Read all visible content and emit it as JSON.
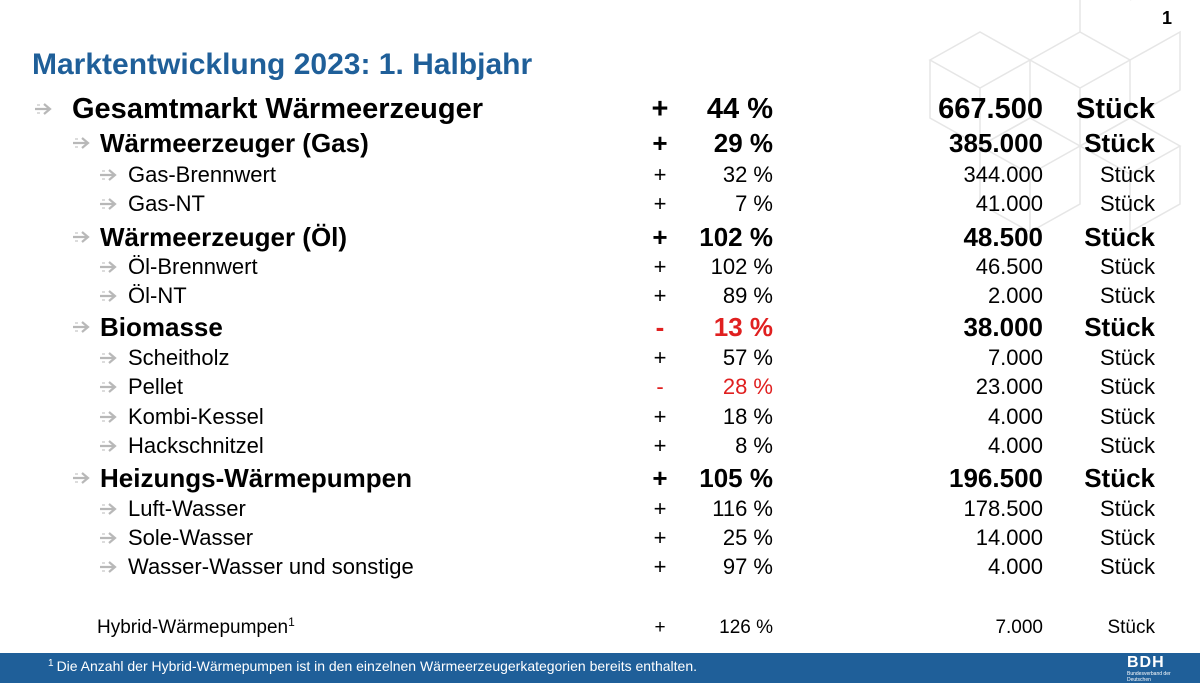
{
  "page_number": "1",
  "title": "Marktentwicklung 2023: 1. Halbjahr",
  "rows": [
    {
      "label": "Gesamtmarkt Wärmeerzeuger",
      "sign": "+",
      "pct": "44 %",
      "qty": "667.500",
      "unit": "Stück"
    },
    {
      "label": "Wärmeerzeuger (Gas)",
      "sign": "+",
      "pct": "29 %",
      "qty": "385.000",
      "unit": "Stück"
    },
    {
      "label": "Gas-Brennwert",
      "sign": "+",
      "pct": "32 %",
      "qty": "344.000",
      "unit": "Stück"
    },
    {
      "label": "Gas-NT",
      "sign": "+",
      "pct": "7 %",
      "qty": "41.000",
      "unit": "Stück"
    },
    {
      "label": "Wärmeerzeuger (Öl)",
      "sign": "+",
      "pct": "102 %",
      "qty": "48.500",
      "unit": "Stück"
    },
    {
      "label": "Öl-Brennwert",
      "sign": "+",
      "pct": "102 %",
      "qty": "46.500",
      "unit": "Stück"
    },
    {
      "label": "Öl-NT",
      "sign": "+",
      "pct": "89 %",
      "qty": "2.000",
      "unit": "Stück"
    },
    {
      "label": "Biomasse",
      "sign": "-",
      "pct": "13 %",
      "qty": "38.000",
      "unit": "Stück"
    },
    {
      "label": "Scheitholz",
      "sign": "+",
      "pct": "57 %",
      "qty": "7.000",
      "unit": "Stück"
    },
    {
      "label": "Pellet",
      "sign": "-",
      "pct": "28 %",
      "qty": "23.000",
      "unit": "Stück"
    },
    {
      "label": "Kombi-Kessel",
      "sign": "+",
      "pct": "18 %",
      "qty": "4.000",
      "unit": "Stück"
    },
    {
      "label": "Hackschnitzel",
      "sign": "+",
      "pct": "8 %",
      "qty": "4.000",
      "unit": "Stück"
    },
    {
      "label": "Heizungs-Wärmepumpen",
      "sign": "+",
      "pct": "105 %",
      "qty": "196.500",
      "unit": "Stück"
    },
    {
      "label": "Luft-Wasser",
      "sign": "+",
      "pct": "116 %",
      "qty": "178.500",
      "unit": "Stück"
    },
    {
      "label": "Sole-Wasser",
      "sign": "+",
      "pct": "25 %",
      "qty": "14.000",
      "unit": "Stück"
    },
    {
      "label": "Wasser-Wasser und sonstige",
      "sign": "+",
      "pct": "97 %",
      "qty": "4.000",
      "unit": "Stück"
    }
  ],
  "hybrid": {
    "label": "Hybrid-Wärmepumpen",
    "sup": "1",
    "sign": "+",
    "pct": "126 %",
    "qty": "7.000",
    "unit": "Stück"
  },
  "footnote": {
    "sup": "1",
    "text": "Die Anzahl der Hybrid-Wärmepumpen ist in den einzelnen Wärmeerzeugerkategorien bereits enthalten."
  },
  "logo": {
    "text": "BDH",
    "subtitle": "Bundesverband der Deutschen Heizungsindustrie"
  },
  "colors": {
    "title": "#1f5f99",
    "footer": "#1f5f99",
    "negative": "#e02020"
  }
}
